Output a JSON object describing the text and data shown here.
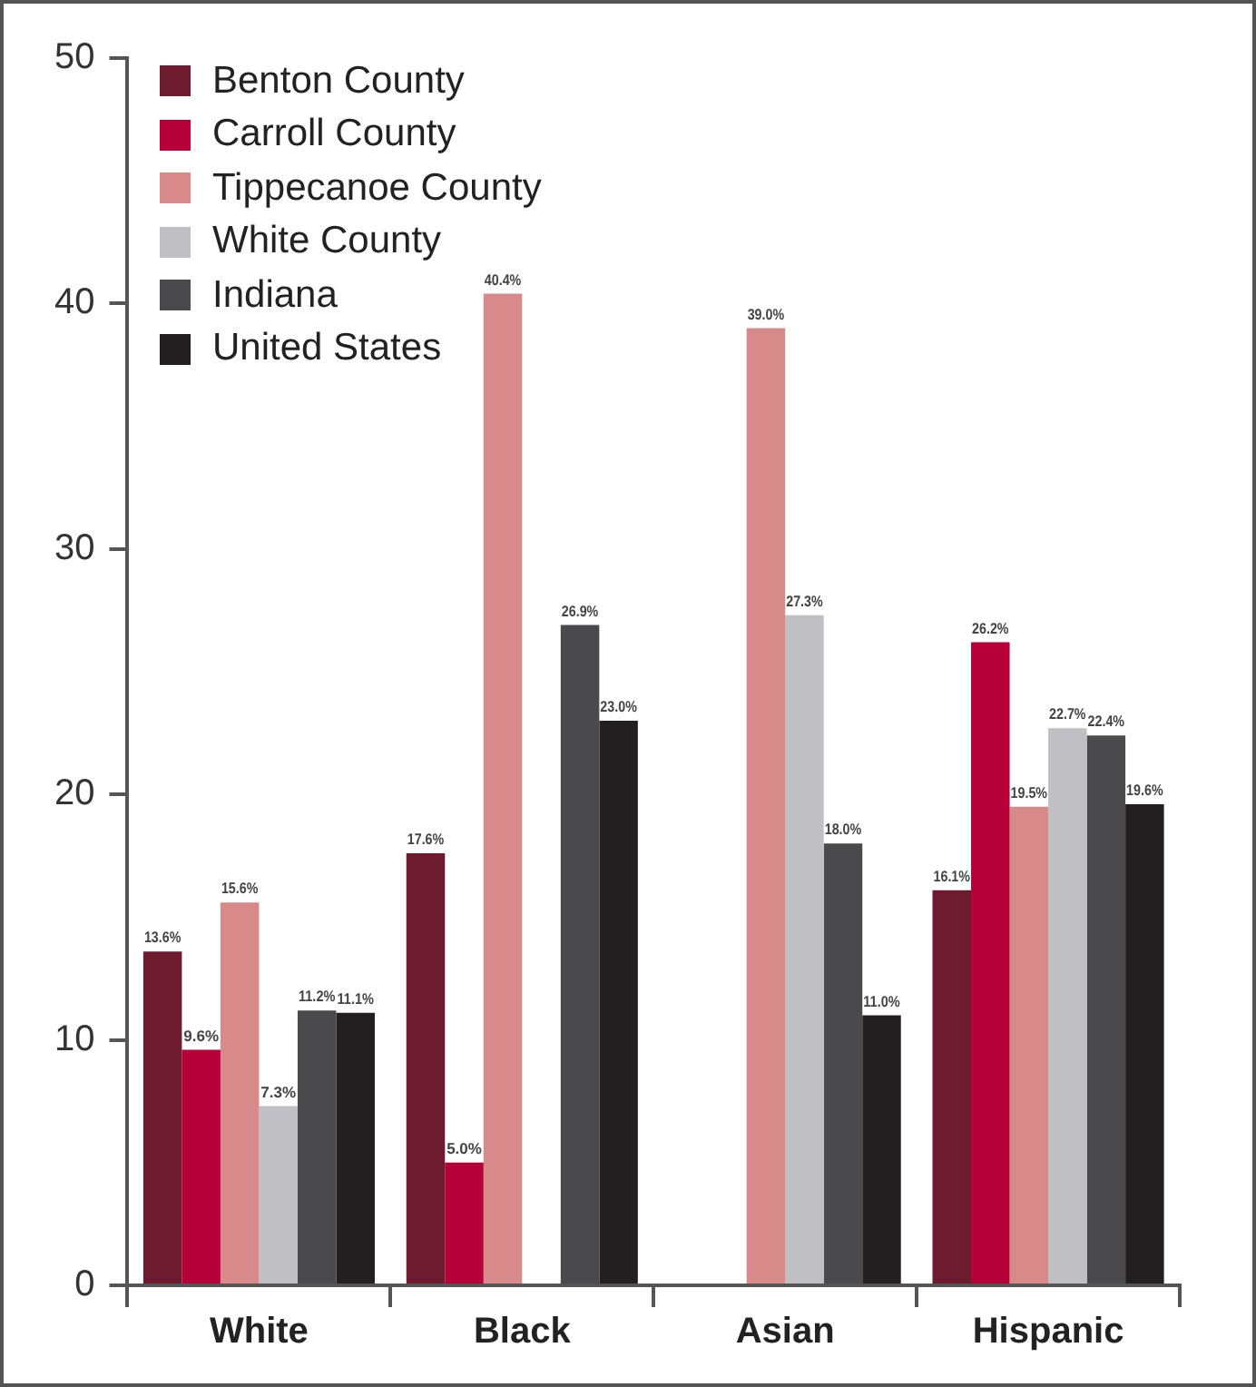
{
  "chart_data": {
    "type": "bar",
    "categories": [
      "White",
      "Black",
      "Asian",
      "Hispanic"
    ],
    "series": [
      {
        "name": "Benton County",
        "color": "#6e1a2f",
        "values": [
          13.6,
          17.6,
          null,
          16.1
        ],
        "value_labels": [
          "13.6%",
          "17.6%",
          null,
          "16.1%"
        ]
      },
      {
        "name": "Carroll County",
        "color": "#b5003a",
        "values": [
          9.6,
          5.0,
          null,
          26.2
        ],
        "value_labels": [
          "9.6%",
          "5.0%",
          null,
          "26.2%"
        ]
      },
      {
        "name": "Tippecanoe County",
        "color": "#d88a8a",
        "values": [
          15.6,
          40.4,
          39.0,
          19.5
        ],
        "value_labels": [
          "15.6%",
          "40.4%",
          "39.0%",
          "19.5%"
        ]
      },
      {
        "name": "White County",
        "color": "#c0bfc3",
        "values": [
          7.3,
          null,
          27.3,
          22.7
        ],
        "value_labels": [
          "7.3%",
          null,
          "27.3%",
          "22.7%"
        ]
      },
      {
        "name": "Indiana",
        "color": "#4a4a4c",
        "values": [
          11.2,
          26.9,
          18.0,
          22.4
        ],
        "value_labels": [
          "11.2%",
          "26.9%",
          "18.0%",
          "22.4%"
        ]
      },
      {
        "name": "United States",
        "color": "#231f20",
        "values": [
          11.1,
          23.0,
          11.0,
          19.6
        ],
        "value_labels": [
          "11.1%",
          "23.0%",
          "11.0%",
          "19.6%"
        ]
      }
    ],
    "ylim": [
      0,
      50
    ],
    "yticks": [
      0,
      10,
      20,
      30,
      40,
      50
    ],
    "grid": false,
    "legend": "top left"
  }
}
